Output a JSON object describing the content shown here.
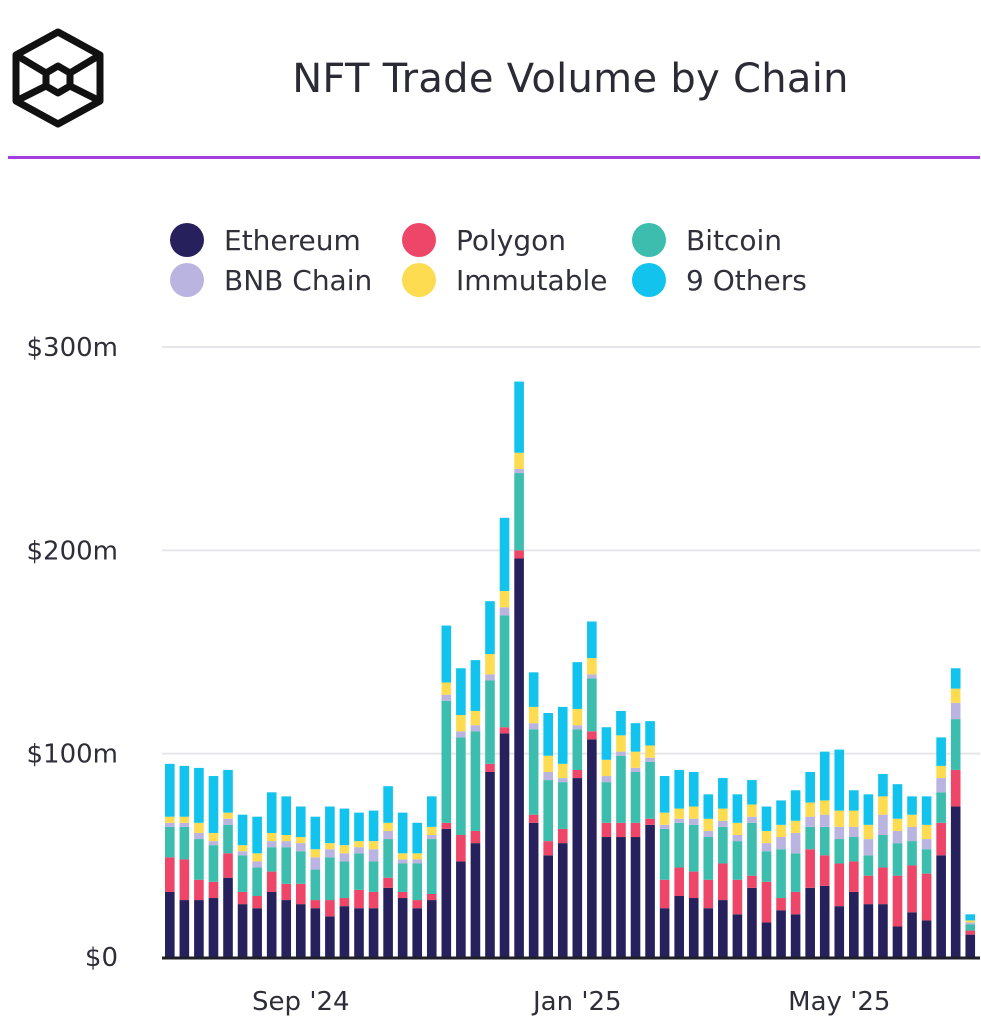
{
  "header": {
    "title": "NFT Trade Volume by Chain"
  },
  "logo": {
    "icon": "the-block-cube-logo-icon"
  },
  "colors": {
    "accent_line": "#a43ee0",
    "Ethereum": "#26215c",
    "Polygon": "#ee4669",
    "Bitcoin": "#3dbdae",
    "BNB Chain": "#b9b4e0",
    "Immutable": "#fddc52",
    "9 Others": "#11c3ed"
  },
  "chart_data": {
    "type": "stacked-bar",
    "title": "NFT Trade Volume by Chain",
    "xlabel": "",
    "ylabel": "",
    "ylim": [
      0,
      300
    ],
    "y_unit": "$m",
    "yticks": [
      {
        "value": 0,
        "label": "$0"
      },
      {
        "value": 100,
        "label": "$100m"
      },
      {
        "value": 200,
        "label": "$200m"
      },
      {
        "value": 300,
        "label": "$300m"
      }
    ],
    "xticks": [
      {
        "index": 9,
        "label": "Sep '24"
      },
      {
        "index": 28,
        "label": "Jan '25"
      },
      {
        "index": 46,
        "label": "May '25"
      }
    ],
    "grid": true,
    "legend_position": "top",
    "legend": [
      "Ethereum",
      "Polygon",
      "Bitcoin",
      "BNB Chain",
      "Immutable",
      "9 Others"
    ],
    "series": [
      {
        "name": "Ethereum",
        "values": [
          32,
          28,
          28,
          29,
          39,
          26,
          24,
          32,
          28,
          26,
          24,
          20,
          25,
          24,
          24,
          34,
          29,
          24,
          28,
          63,
          47,
          56,
          91,
          110,
          196,
          66,
          50,
          56,
          88,
          107,
          59,
          59,
          59,
          65,
          24,
          30,
          29,
          24,
          28,
          21,
          34,
          17,
          23,
          21,
          34,
          35,
          25,
          32,
          26,
          26,
          15,
          22,
          18,
          50,
          74,
          11
        ]
      },
      {
        "name": "Polygon",
        "values": [
          17,
          20,
          10,
          8,
          12,
          6,
          6,
          10,
          8,
          10,
          4,
          8,
          4,
          9,
          8,
          5,
          3,
          4,
          3,
          3,
          13,
          6,
          4,
          3,
          4,
          4,
          7,
          7,
          4,
          4,
          7,
          7,
          7,
          3,
          14,
          14,
          13,
          14,
          18,
          17,
          6,
          20,
          6,
          11,
          19,
          15,
          21,
          15,
          14,
          18,
          25,
          23,
          23,
          16,
          18,
          2
        ]
      },
      {
        "name": "Bitcoin",
        "values": [
          15,
          16,
          20,
          18,
          14,
          18,
          14,
          12,
          18,
          16,
          15,
          21,
          18,
          18,
          15,
          19,
          14,
          18,
          27,
          60,
          48,
          49,
          41,
          55,
          38,
          42,
          30,
          23,
          20,
          26,
          20,
          33,
          25,
          28,
          25,
          22,
          23,
          21,
          18,
          19,
          26,
          15,
          24,
          19,
          11,
          14,
          12,
          12,
          10,
          16,
          16,
          12,
          12,
          15,
          25,
          3
        ]
      },
      {
        "name": "BNB Chain",
        "values": [
          2,
          2,
          3,
          2,
          3,
          2,
          3,
          3,
          3,
          4,
          6,
          4,
          4,
          3,
          6,
          4,
          2,
          2,
          2,
          3,
          3,
          3,
          3,
          4,
          2,
          3,
          4,
          2,
          2,
          2,
          3,
          2,
          2,
          2,
          2,
          2,
          3,
          3,
          3,
          3,
          3,
          4,
          6,
          10,
          5,
          6,
          6,
          5,
          8,
          10,
          6,
          7,
          5,
          7,
          8,
          1
        ]
      },
      {
        "name": "Immutable",
        "values": [
          3,
          3,
          5,
          4,
          3,
          3,
          4,
          4,
          3,
          3,
          4,
          3,
          4,
          3,
          4,
          4,
          3,
          3,
          4,
          6,
          8,
          7,
          10,
          8,
          8,
          8,
          8,
          7,
          8,
          8,
          8,
          8,
          8,
          6,
          6,
          5,
          6,
          6,
          6,
          6,
          6,
          6,
          6,
          6,
          7,
          7,
          8,
          8,
          7,
          9,
          6,
          6,
          7,
          6,
          7,
          1
        ]
      },
      {
        "name": "9 Others",
        "values": [
          26,
          25,
          27,
          28,
          21,
          15,
          18,
          20,
          19,
          15,
          16,
          18,
          18,
          14,
          15,
          18,
          20,
          15,
          15,
          28,
          23,
          25,
          26,
          36,
          35,
          17,
          21,
          28,
          23,
          18,
          16,
          12,
          14,
          12,
          18,
          19,
          17,
          12,
          15,
          14,
          12,
          12,
          12,
          15,
          15,
          24,
          30,
          10,
          15,
          11,
          17,
          9,
          14,
          14,
          10,
          3
        ]
      }
    ]
  }
}
